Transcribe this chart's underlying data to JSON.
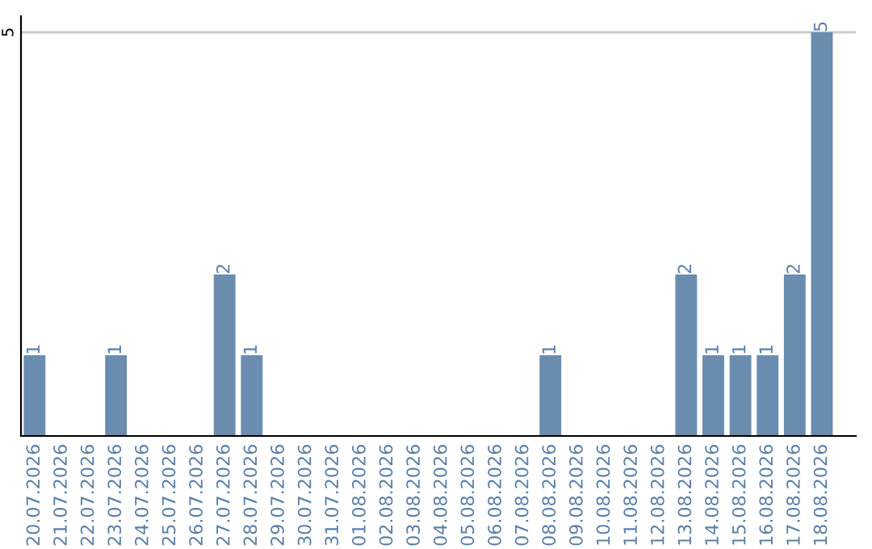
{
  "chart_data": {
    "type": "bar",
    "categories": [
      "20.07.2026",
      "21.07.2026",
      "22.07.2026",
      "23.07.2026",
      "24.07.2026",
      "25.07.2026",
      "26.07.2026",
      "27.07.2026",
      "28.07.2026",
      "29.07.2026",
      "30.07.2026",
      "31.07.2026",
      "01.08.2026",
      "02.08.2026",
      "03.08.2026",
      "04.08.2026",
      "05.08.2026",
      "06.08.2026",
      "07.08.2026",
      "08.08.2026",
      "09.08.2026",
      "10.08.2026",
      "11.08.2026",
      "12.08.2026",
      "13.08.2026",
      "14.08.2026",
      "15.08.2026",
      "16.08.2026",
      "17.08.2026",
      "18.08.2026"
    ],
    "values": [
      1,
      0,
      0,
      1,
      0,
      0,
      0,
      2,
      1,
      0,
      0,
      0,
      0,
      0,
      0,
      0,
      0,
      0,
      0,
      1,
      0,
      0,
      0,
      0,
      2,
      1,
      1,
      1,
      2,
      5
    ],
    "value_labels": [
      "1",
      null,
      null,
      "1",
      null,
      null,
      null,
      "2",
      "1",
      null,
      null,
      null,
      null,
      null,
      null,
      null,
      null,
      null,
      null,
      "1",
      null,
      null,
      null,
      null,
      "2",
      "1",
      "1",
      "1",
      "2",
      "5"
    ],
    "color": "#6a8caf",
    "ylim": [
      0,
      5.2
    ],
    "yticks": [
      5
    ],
    "grid": "y",
    "legend": false
  }
}
